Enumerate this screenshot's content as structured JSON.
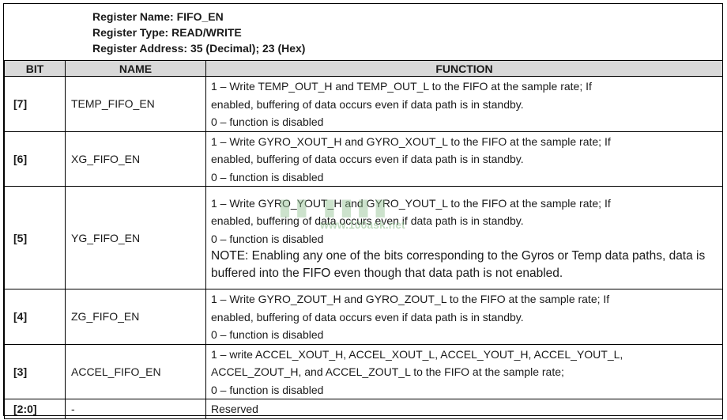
{
  "register": {
    "name": "Register Name: FIFO_EN",
    "type": "Register Type: READ/WRITE",
    "address": "Register Address: 35 (Decimal); 23 (Hex)"
  },
  "table": {
    "headers": [
      "BIT",
      "NAME",
      "FUNCTION"
    ],
    "rows": [
      {
        "bit": "[7]",
        "name": "TEMP_FIFO_EN",
        "function": [
          "1 – Write TEMP_OUT_H and TEMP_OUT_L to the FIFO at the sample rate; If",
          "enabled, buffering of data occurs even if data path is in standby.",
          "0 – function is disabled"
        ]
      },
      {
        "bit": "[6]",
        "name": "XG_FIFO_EN",
        "function": [
          "1 – Write GYRO_XOUT_H and GYRO_XOUT_L to the FIFO at the sample rate; If",
          "enabled, buffering of data occurs even if data path is in standby.",
          "0 – function is disabled"
        ]
      },
      {
        "bit": "[5]",
        "name": "YG_FIFO_EN",
        "function": [
          "1 – Write GYRO_YOUT_H and GYRO_YOUT_L to the FIFO at the sample rate; If",
          "enabled, buffering of data occurs even if data path is in standby.",
          "0 – function is disabled"
        ],
        "note": "NOTE: Enabling any one of the bits corresponding to the Gyros or Temp data paths, data is buffered into the FIFO even though that data path is not enabled."
      },
      {
        "bit": "[4]",
        "name": "ZG_FIFO_EN",
        "function": [
          "1 – Write GYRO_ZOUT_H and GYRO_ZOUT_L to the FIFO at the sample rate; If",
          "enabled, buffering of data occurs even if data path is in standby.",
          "0 – function is disabled"
        ]
      },
      {
        "bit": "[3]",
        "name": "ACCEL_FIFO_EN",
        "function": [
          "1 – write ACCEL_XOUT_H, ACCEL_XOUT_L, ACCEL_YOUT_H, ACCEL_YOUT_L,",
          "ACCEL_ZOUT_H, and ACCEL_ZOUT_L to the FIFO at the sample rate;",
          "0 – function is disabled"
        ]
      },
      {
        "bit": "[2:0]",
        "name": "-",
        "function": [
          "Reserved"
        ]
      }
    ]
  },
  "watermark": {
    "url": "www.100ask.net"
  }
}
